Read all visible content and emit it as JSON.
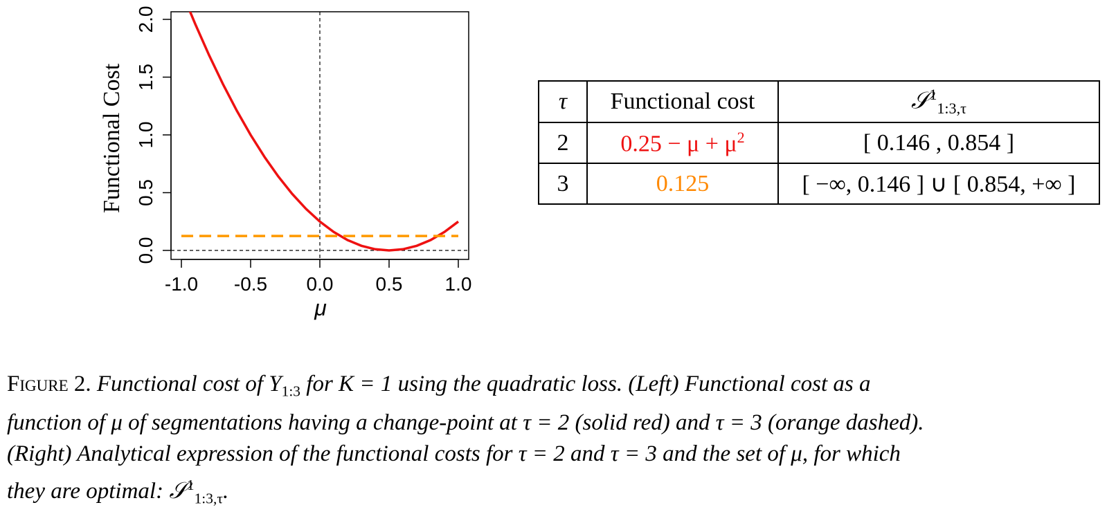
{
  "chart_data": {
    "type": "line",
    "xlabel": "μ",
    "ylabel": "Functional Cost",
    "xlim": [
      -1.0,
      1.0
    ],
    "ylim": [
      0.0,
      2.0
    ],
    "x_ticks": [
      "-1.0",
      "-0.5",
      "0.0",
      "0.5",
      "1.0"
    ],
    "y_ticks": [
      "0.0",
      "0.5",
      "1.0",
      "1.5",
      "2.0"
    ],
    "series": [
      {
        "style": "solid",
        "color": "#ee1111",
        "x": [
          -0.98,
          -0.9,
          -0.8,
          -0.7,
          -0.6,
          -0.5,
          -0.4,
          -0.3,
          -0.2,
          -0.1,
          0.0,
          0.1,
          0.2,
          0.3,
          0.4,
          0.5,
          0.6,
          0.7,
          0.8,
          0.9,
          1.0
        ],
        "y": [
          2.19,
          1.96,
          1.69,
          1.44,
          1.21,
          1.0,
          0.81,
          0.64,
          0.49,
          0.36,
          0.25,
          0.16,
          0.09,
          0.04,
          0.01,
          0.0,
          0.01,
          0.04,
          0.09,
          0.16,
          0.25
        ]
      },
      {
        "style": "dashed",
        "color": "#ff9900",
        "x": [
          -1.0,
          1.0
        ],
        "y": [
          0.125,
          0.125
        ]
      }
    ],
    "reference_lines": {
      "vertical_x": 0.0,
      "horizontal_y": 0.0,
      "style": "dashed",
      "color": "#000000"
    }
  },
  "table": {
    "headers": {
      "tau": "τ",
      "cost": "Functional cost",
      "set_main": "𝒮",
      "set_sup": "1",
      "set_sub": "1:3,τ"
    },
    "rows": [
      {
        "tau": "2",
        "cost_main": "0.25 − μ + μ",
        "cost_sup": "2",
        "cost_color": "#ee1111",
        "set": "[ 0.146 , 0.854 ]"
      },
      {
        "tau": "3",
        "cost_main": "0.125",
        "cost_sup": "",
        "cost_color": "#ff8800",
        "set": "[ −∞, 0.146 ] ∪ [ 0.854, +∞ ]"
      }
    ]
  },
  "caption": {
    "label": "Figure 2.",
    "line1": "Functional cost of Y",
    "line1_sub": "1:3",
    "line1_rest": " for K = 1 using the quadratic loss. (Left) Functional cost as a",
    "line2": "function of μ of segmentations having a change-point at τ = 2 (solid red) and τ = 3 (orange dashed).",
    "line3": "(Right) Analytical expression of the functional costs for τ = 2 and τ = 3 and the set of μ, for which",
    "line4": "they are optimal: ",
    "line4_sym": "𝒮",
    "line4_sup": "1",
    "line4_sub": "1:3,τ",
    "line4_end": "."
  }
}
